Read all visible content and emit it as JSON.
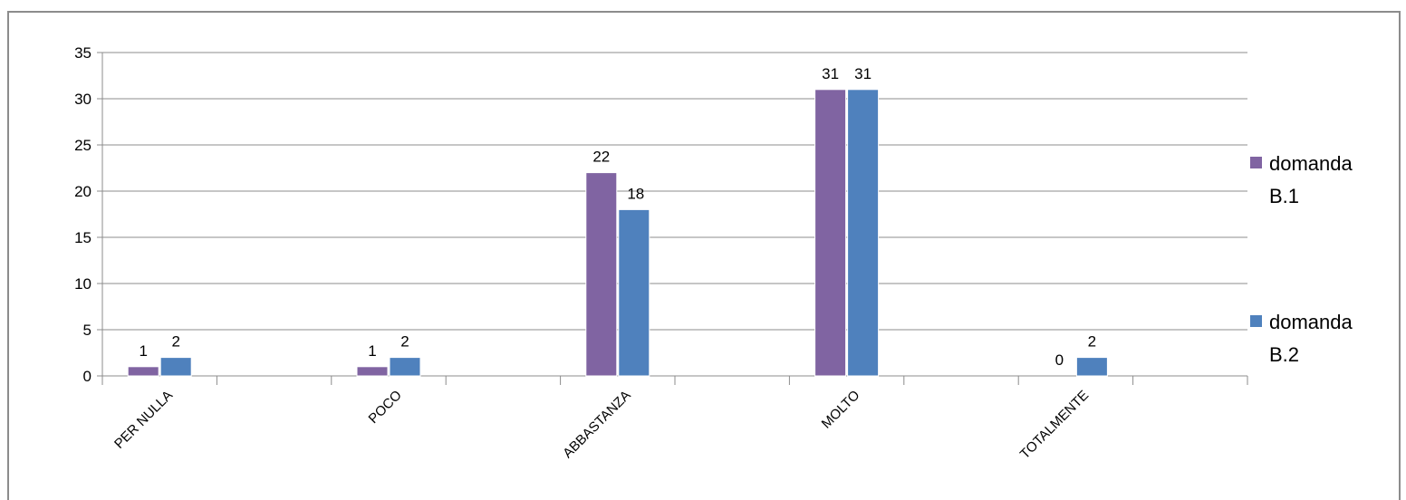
{
  "chart_data": {
    "type": "bar",
    "categories": [
      "PER NULLA",
      "POCO",
      "ABBASTANZA",
      "MOLTO",
      "TOTALMENTE"
    ],
    "series": [
      {
        "name": "domanda B.1",
        "values": [
          1,
          1,
          22,
          31,
          0
        ],
        "color": "#8064a2"
      },
      {
        "name": "domanda B.2",
        "values": [
          2,
          2,
          18,
          31,
          2
        ],
        "color": "#4f81bd"
      }
    ],
    "yticks": [
      "0",
      "5",
      "10",
      "15",
      "20",
      "25",
      "30",
      "35"
    ],
    "ylim": [
      0,
      35
    ],
    "grid": true,
    "legend_position": "right",
    "data_labels": true
  }
}
